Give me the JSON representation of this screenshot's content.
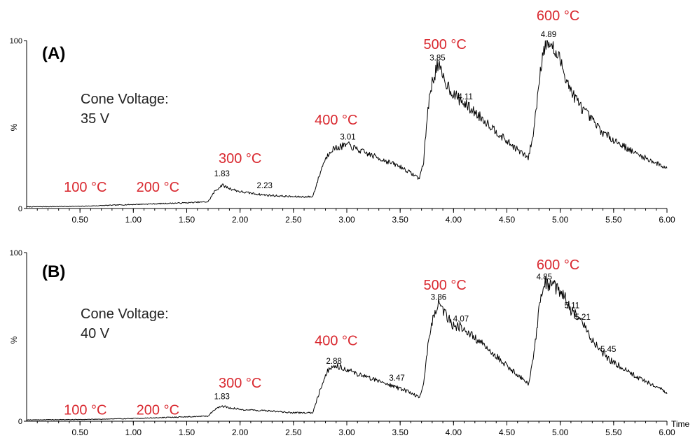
{
  "chart_data": [
    {
      "type": "line",
      "panel_label": "(A)",
      "annotation_lines": [
        "Cone Voltage:",
        "35 V"
      ],
      "ylabel": "%",
      "y_ticks": [
        "0",
        "100"
      ],
      "ylim": [
        0,
        100
      ],
      "xlim": [
        0,
        6.0
      ],
      "x_ticks": [
        0.5,
        1.0,
        1.5,
        2.0,
        2.5,
        3.0,
        3.5,
        4.0,
        4.5,
        5.0,
        5.5,
        6.0
      ],
      "x_tick_labels": [
        "0.50",
        "1.00",
        "1.50",
        "2.00",
        "2.50",
        "3.00",
        "3.50",
        "4.00",
        "4.50",
        "5.00",
        "5.50",
        "6.00"
      ],
      "xlabel": "",
      "temperature_color": "#d9282f",
      "temperature_labels": [
        {
          "text": "100 °C",
          "x": 0.55,
          "y": 10
        },
        {
          "text": "200 °C",
          "x": 1.23,
          "y": 10
        },
        {
          "text": "300 °C",
          "x": 2.0,
          "y": 27
        },
        {
          "text": "400 °C",
          "x": 2.9,
          "y": 50
        },
        {
          "text": "500 °C",
          "x": 3.92,
          "y": 95
        },
        {
          "text": "600 °C",
          "x": 4.98,
          "y": 112
        }
      ],
      "peak_labels": [
        {
          "text": "1.83",
          "x": 1.83,
          "y": 17
        },
        {
          "text": "2.23",
          "x": 2.23,
          "y": 10
        },
        {
          "text": "3.01",
          "x": 3.01,
          "y": 39
        },
        {
          "text": "3.85",
          "x": 3.85,
          "y": 86
        },
        {
          "text": "4.11",
          "x": 4.11,
          "y": 63
        },
        {
          "text": "4.89",
          "x": 4.89,
          "y": 100
        }
      ],
      "series": [
        {
          "values": [
            [
              0,
              1
            ],
            [
              0.5,
              1.3
            ],
            [
              1.0,
              2.4
            ],
            [
              1.5,
              3.4
            ],
            [
              1.7,
              4
            ],
            [
              1.76,
              10
            ],
            [
              1.83,
              14
            ],
            [
              1.9,
              12
            ],
            [
              2.0,
              10
            ],
            [
              2.23,
              8
            ],
            [
              2.5,
              7
            ],
            [
              2.68,
              7
            ],
            [
              2.72,
              15
            ],
            [
              2.78,
              27
            ],
            [
              2.85,
              35
            ],
            [
              2.95,
              37
            ],
            [
              3.01,
              38
            ],
            [
              3.1,
              35
            ],
            [
              3.3,
              30
            ],
            [
              3.5,
              25
            ],
            [
              3.68,
              18
            ],
            [
              3.72,
              28
            ],
            [
              3.76,
              60
            ],
            [
              3.8,
              75
            ],
            [
              3.85,
              86
            ],
            [
              3.9,
              78
            ],
            [
              4.0,
              68
            ],
            [
              4.11,
              62
            ],
            [
              4.3,
              52
            ],
            [
              4.5,
              40
            ],
            [
              4.7,
              30
            ],
            [
              4.75,
              45
            ],
            [
              4.8,
              75
            ],
            [
              4.84,
              95
            ],
            [
              4.89,
              100
            ],
            [
              4.95,
              93
            ],
            [
              5.0,
              88
            ],
            [
              5.1,
              70
            ],
            [
              5.2,
              60
            ],
            [
              5.4,
              45
            ],
            [
              5.7,
              33
            ],
            [
              6.0,
              24
            ]
          ]
        }
      ]
    },
    {
      "type": "line",
      "panel_label": "(B)",
      "annotation_lines": [
        "Cone Voltage:",
        "40 V"
      ],
      "ylabel": "%",
      "y_ticks": [
        "0",
        "100"
      ],
      "ylim": [
        0,
        100
      ],
      "xlim": [
        0,
        6.0
      ],
      "x_ticks": [
        0.5,
        1.0,
        1.5,
        2.0,
        2.5,
        3.0,
        3.5,
        4.0,
        4.5,
        5.0,
        5.5,
        6.0
      ],
      "x_tick_labels": [
        "0.50",
        "1.00",
        "1.50",
        "2.00",
        "2.50",
        "3.00",
        "3.50",
        "4.00",
        "4.50",
        "5.00",
        "5.50",
        "6.00"
      ],
      "xlabel": "Time",
      "temperature_color": "#d9282f",
      "temperature_labels": [
        {
          "text": "100 °C",
          "x": 0.55,
          "y": 4
        },
        {
          "text": "200 °C",
          "x": 1.23,
          "y": 4
        },
        {
          "text": "300 °C",
          "x": 2.0,
          "y": 20
        },
        {
          "text": "400 °C",
          "x": 2.9,
          "y": 45
        },
        {
          "text": "500 °C",
          "x": 3.92,
          "y": 78
        },
        {
          "text": "600 °C",
          "x": 4.98,
          "y": 90
        }
      ],
      "peak_labels": [
        {
          "text": "1.83",
          "x": 1.83,
          "y": 11
        },
        {
          "text": "2.88",
          "x": 2.88,
          "y": 32
        },
        {
          "text": "3.47",
          "x": 3.47,
          "y": 22
        },
        {
          "text": "3.86",
          "x": 3.86,
          "y": 70
        },
        {
          "text": "4.07",
          "x": 4.07,
          "y": 57
        },
        {
          "text": "4.85",
          "x": 4.85,
          "y": 82
        },
        {
          "text": "5.11",
          "x": 5.11,
          "y": 65
        },
        {
          "text": "5.21",
          "x": 5.21,
          "y": 58
        },
        {
          "text": "5.45",
          "x": 5.45,
          "y": 39
        }
      ],
      "series": [
        {
          "values": [
            [
              0,
              0.8
            ],
            [
              0.5,
              1.0
            ],
            [
              1.0,
              1.6
            ],
            [
              1.5,
              2.6
            ],
            [
              1.7,
              3
            ],
            [
              1.76,
              7
            ],
            [
              1.83,
              9
            ],
            [
              1.9,
              8
            ],
            [
              2.0,
              7
            ],
            [
              2.3,
              6
            ],
            [
              2.5,
              5
            ],
            [
              2.68,
              5
            ],
            [
              2.72,
              13
            ],
            [
              2.78,
              24
            ],
            [
              2.83,
              31
            ],
            [
              2.88,
              33
            ],
            [
              2.95,
              32
            ],
            [
              3.1,
              28
            ],
            [
              3.3,
              24
            ],
            [
              3.47,
              20
            ],
            [
              3.6,
              17
            ],
            [
              3.68,
              14
            ],
            [
              3.72,
              22
            ],
            [
              3.76,
              45
            ],
            [
              3.8,
              60
            ],
            [
              3.86,
              70
            ],
            [
              3.92,
              64
            ],
            [
              4.0,
              57
            ],
            [
              4.07,
              56
            ],
            [
              4.3,
              44
            ],
            [
              4.5,
              33
            ],
            [
              4.7,
              22
            ],
            [
              4.75,
              38
            ],
            [
              4.8,
              65
            ],
            [
              4.85,
              82
            ],
            [
              4.92,
              80
            ],
            [
              5.0,
              78
            ],
            [
              5.11,
              65
            ],
            [
              5.21,
              58
            ],
            [
              5.3,
              48
            ],
            [
              5.45,
              37
            ],
            [
              5.7,
              27
            ],
            [
              6.0,
              17
            ]
          ]
        }
      ]
    }
  ]
}
